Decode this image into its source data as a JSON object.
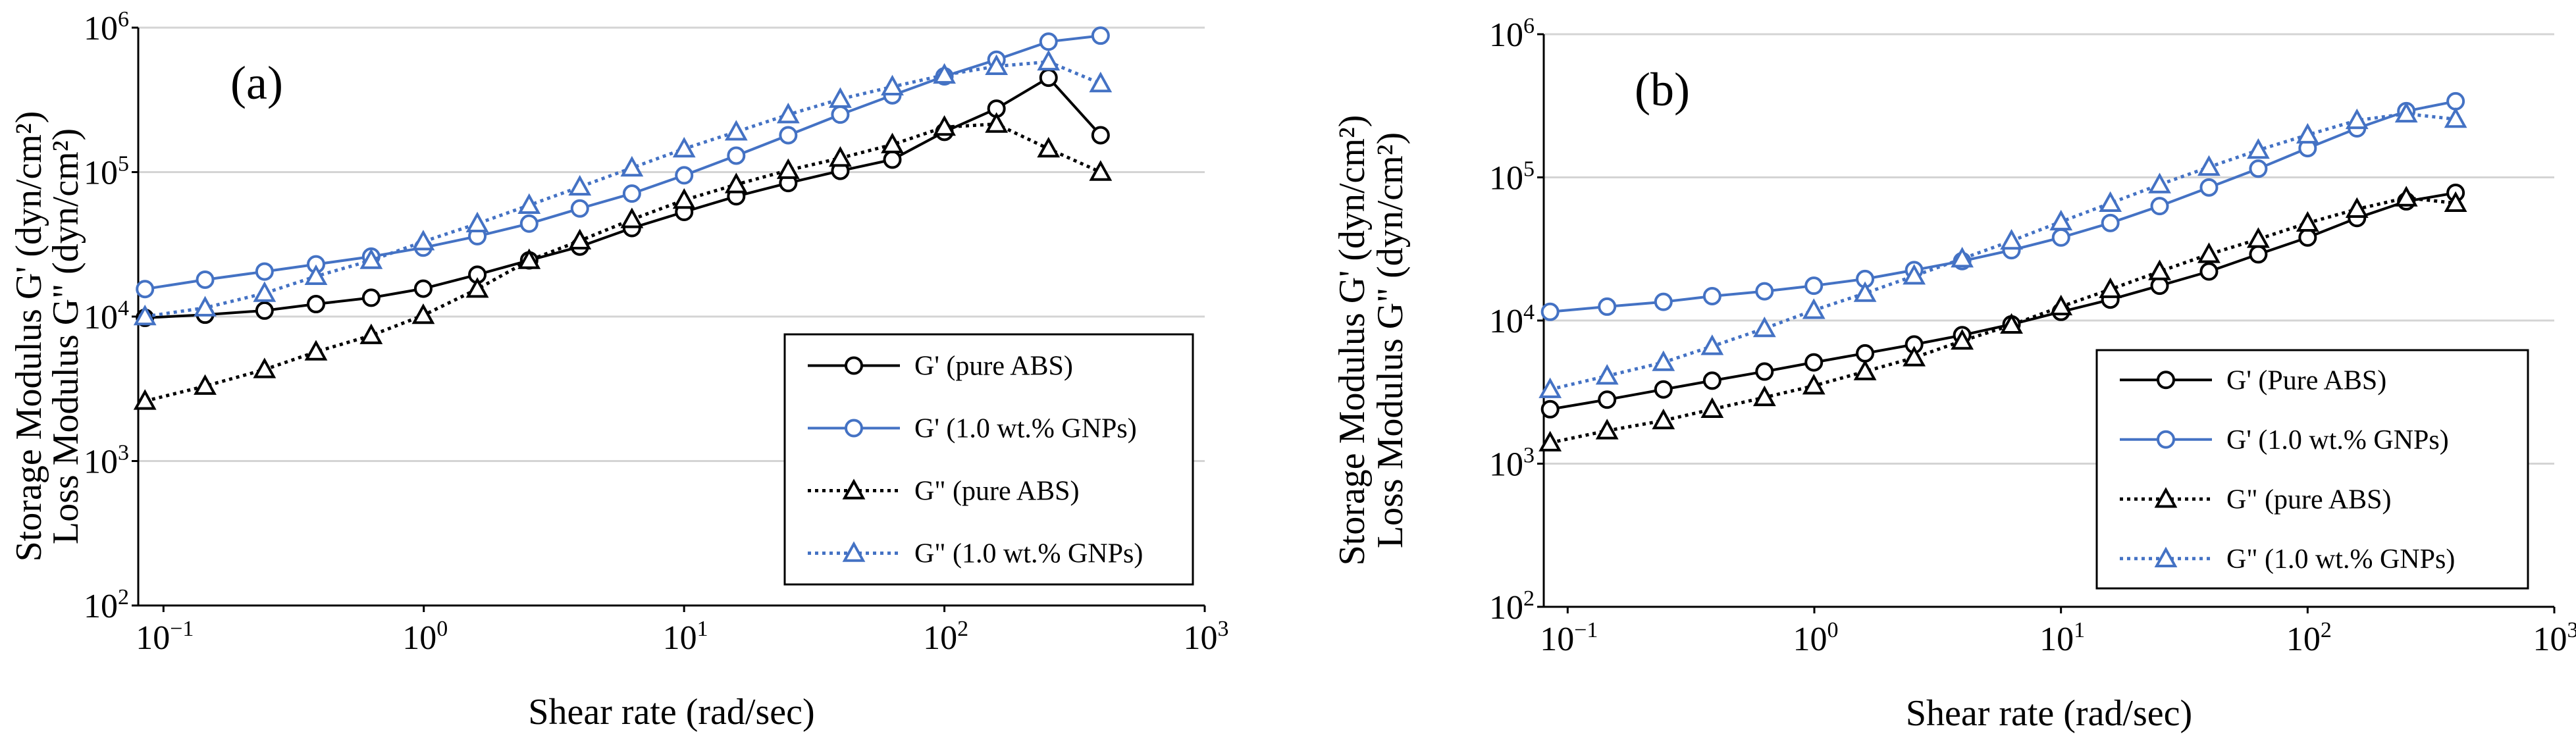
{
  "chart_data": [
    {
      "type": "line",
      "panel_label": "(a)",
      "xlabel": "Shear rate (rad/sec)",
      "ylabel_lines": [
        "Storage Modulus G' (dyn/cm²)",
        "Loss Modulus G\" (dyn/cm²)"
      ],
      "x_scale": "log",
      "y_scale": "log",
      "xlim": [
        0.08,
        1000
      ],
      "ylim": [
        100,
        1000000
      ],
      "x_ticks": [
        0.1,
        1,
        10,
        100,
        1000
      ],
      "x_tick_labels": [
        {
          "base": "10",
          "exp": "−1"
        },
        {
          "base": "10",
          "exp": "0"
        },
        {
          "base": "10",
          "exp": "1"
        },
        {
          "base": "10",
          "exp": "2"
        },
        {
          "base": "10",
          "exp": "3"
        }
      ],
      "y_ticks": [
        100,
        1000,
        10000,
        100000,
        1000000
      ],
      "y_tick_labels": [
        {
          "base": "10",
          "exp": "2"
        },
        {
          "base": "10",
          "exp": "3"
        },
        {
          "base": "10",
          "exp": "4"
        },
        {
          "base": "10",
          "exp": "5"
        },
        {
          "base": "10",
          "exp": "6"
        }
      ],
      "grid": "horizontal major lines",
      "legend_position": "bottom-right",
      "series": [
        {
          "name": "G' (pure ABS)",
          "color": "#000000",
          "marker": "circle",
          "line_style": "solid",
          "x": [
            0.0849,
            0.1445,
            0.2445,
            0.3854,
            0.6281,
            0.9954,
            1.6058,
            2.5395,
            3.9762,
            6.3026,
            10.004,
            15.856,
            25.12,
            39.81,
            63.1,
            100.0,
            158.5,
            251.2,
            398.1
          ],
          "y": [
            9800,
            10300,
            11000,
            12200,
            13500,
            15600,
            19500,
            24500,
            30500,
            41000,
            53000,
            68000,
            84000,
            102000,
            122000,
            190000,
            275000,
            450000,
            180000
          ]
        },
        {
          "name": "G' (1.0 wt.% GNPs)",
          "color": "#4472C4",
          "marker": "circle",
          "line_style": "solid",
          "x": [
            0.0849,
            0.1445,
            0.2445,
            0.3854,
            0.6281,
            0.9954,
            1.6058,
            2.5395,
            3.9762,
            6.3026,
            10.004,
            15.856,
            25.12,
            39.81,
            63.1,
            100.0,
            158.5,
            251.2,
            398.1
          ],
          "y": [
            15500,
            18000,
            20500,
            23000,
            26000,
            30000,
            36000,
            44000,
            56000,
            71000,
            95000,
            130000,
            180000,
            250000,
            340000,
            460000,
            600000,
            800000,
            880000
          ]
        },
        {
          "name": "G\" (pure ABS)",
          "color": "#000000",
          "marker": "triangle",
          "line_style": "dotted",
          "x": [
            0.0849,
            0.1445,
            0.2445,
            0.3854,
            0.6281,
            0.9954,
            1.6058,
            2.5395,
            3.9762,
            6.3026,
            10.004,
            15.856,
            25.12,
            39.81,
            63.1,
            100.0,
            158.5,
            251.2,
            398.1
          ],
          "y": [
            2600,
            3300,
            4300,
            5700,
            7400,
            10200,
            15500,
            24500,
            33500,
            47000,
            64000,
            82000,
            103000,
            125000,
            155000,
            205000,
            215000,
            145000,
            100000
          ]
        },
        {
          "name": "G\" (1.0 wt.% GNPs)",
          "color": "#4472C4",
          "marker": "triangle",
          "line_style": "dotted",
          "x": [
            0.0849,
            0.1445,
            0.2445,
            0.3854,
            0.6281,
            0.9954,
            1.6058,
            2.5395,
            3.9762,
            6.3026,
            10.004,
            15.856,
            25.12,
            39.81,
            63.1,
            100.0,
            158.5,
            251.2,
            398.1
          ],
          "y": [
            10000,
            11500,
            14500,
            19000,
            24500,
            33000,
            44000,
            59000,
            79000,
            107000,
            145000,
            190000,
            250000,
            320000,
            390000,
            470000,
            540000,
            580000,
            410000
          ]
        }
      ]
    },
    {
      "type": "line",
      "panel_label": "(b)",
      "xlabel": "Shear rate (rad/sec)",
      "ylabel_lines": [
        "Storage Modulus G' (dyn/cm²)",
        "Loss Modulus G\" (dyn/cm²)"
      ],
      "x_scale": "log",
      "y_scale": "log",
      "xlim": [
        0.08,
        1000
      ],
      "ylim": [
        100,
        1000000
      ],
      "x_ticks": [
        0.1,
        1,
        10,
        100,
        1000
      ],
      "x_tick_labels": [
        {
          "base": "10",
          "exp": "−1"
        },
        {
          "base": "10",
          "exp": "0"
        },
        {
          "base": "10",
          "exp": "1"
        },
        {
          "base": "10",
          "exp": "2"
        },
        {
          "base": "10",
          "exp": "3"
        }
      ],
      "y_ticks": [
        100,
        1000,
        10000,
        100000,
        1000000
      ],
      "y_tick_labels": [
        {
          "base": "10",
          "exp": "2"
        },
        {
          "base": "10",
          "exp": "3"
        },
        {
          "base": "10",
          "exp": "4"
        },
        {
          "base": "10",
          "exp": "5"
        },
        {
          "base": "10",
          "exp": "6"
        }
      ],
      "grid": "horizontal major lines",
      "legend_position": "bottom-right",
      "series": [
        {
          "name": "G' (Pure ABS)",
          "color": "#000000",
          "marker": "circle",
          "line_style": "solid",
          "x": [
            0.0849,
            0.1445,
            0.2445,
            0.3854,
            0.6281,
            0.9954,
            1.6058,
            2.5395,
            3.9762,
            6.3026,
            10.004,
            15.856,
            25.12,
            39.81,
            63.1,
            100.0,
            158.5,
            251.2,
            398.1
          ],
          "y": [
            2400,
            2800,
            3300,
            3800,
            4400,
            5100,
            5900,
            6800,
            7900,
            9400,
            11500,
            14000,
            17500,
            22000,
            29000,
            38000,
            52000,
            68000,
            78000
          ]
        },
        {
          "name": "G' (1.0 wt.% GNPs)",
          "color": "#4472C4",
          "marker": "circle",
          "line_style": "solid",
          "x": [
            0.0849,
            0.1445,
            0.2445,
            0.3854,
            0.6281,
            0.9954,
            1.6058,
            2.5395,
            3.9762,
            6.3026,
            10.004,
            15.856,
            25.12,
            39.81,
            63.1,
            100.0,
            158.5,
            251.2,
            398.1
          ],
          "y": [
            11500,
            12500,
            13500,
            14800,
            16000,
            17500,
            19500,
            22500,
            26000,
            31000,
            38000,
            48000,
            63000,
            85000,
            115000,
            160000,
            220000,
            290000,
            340000
          ]
        },
        {
          "name": "G\" (pure ABS)",
          "color": "#000000",
          "marker": "triangle",
          "line_style": "dotted",
          "x": [
            0.0849,
            0.1445,
            0.2445,
            0.3854,
            0.6281,
            0.9954,
            1.6058,
            2.5395,
            3.9762,
            6.3026,
            10.004,
            15.856,
            25.12,
            39.81,
            63.1,
            100.0,
            158.5,
            251.2,
            398.1
          ],
          "y": [
            1400,
            1700,
            2000,
            2400,
            2900,
            3500,
            4400,
            5500,
            7200,
            9300,
            12500,
            16500,
            22000,
            29000,
            37000,
            48000,
            60000,
            72000,
            66000
          ]
        },
        {
          "name": "G\" (1.0 wt.% GNPs)",
          "color": "#4472C4",
          "marker": "triangle",
          "line_style": "dotted",
          "x": [
            0.0849,
            0.1445,
            0.2445,
            0.3854,
            0.6281,
            0.9954,
            1.6058,
            2.5395,
            3.9762,
            6.3026,
            10.004,
            15.856,
            25.12,
            39.81,
            63.1,
            100.0,
            158.5,
            251.2,
            398.1
          ],
          "y": [
            3300,
            4100,
            5100,
            6600,
            8800,
            11800,
            15500,
            20500,
            27000,
            36000,
            49000,
            66000,
            89000,
            118000,
            155000,
            198000,
            250000,
            278000,
            255000
          ]
        }
      ]
    }
  ]
}
